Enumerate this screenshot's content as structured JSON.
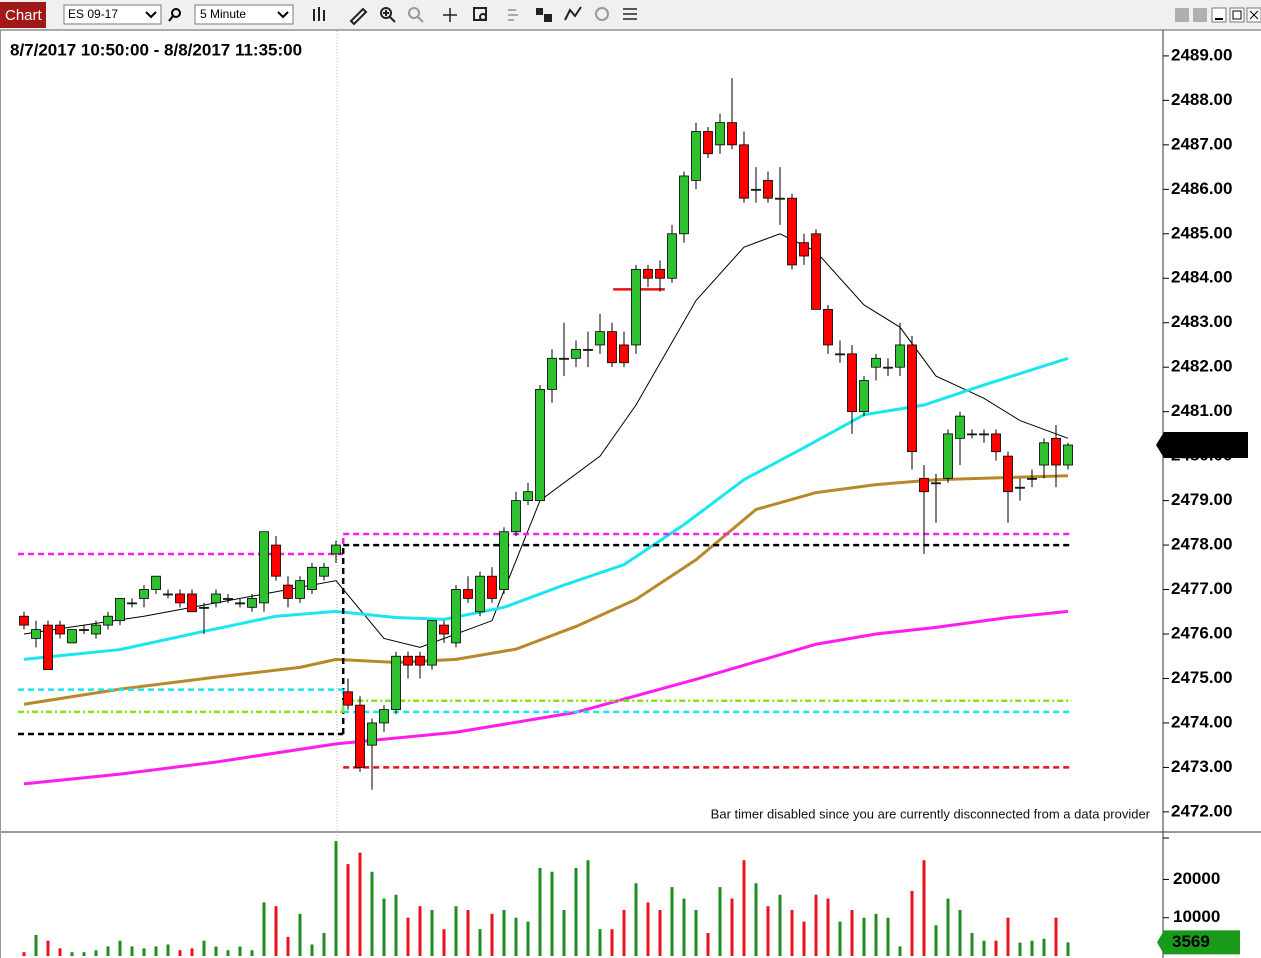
{
  "toolbar": {
    "title": "Chart",
    "instrument": "ES 09-17",
    "interval": "5 Minute"
  },
  "chart_data": [
    {
      "type": "candlestick",
      "title": "8/7/2017 10:50:00 - 8/8/2017 11:35:00",
      "annotation": "Bar timer disabled since you are currently disconnected from a data provider",
      "up_color": "#2fc02f",
      "down_color": "#ff0000",
      "open": [
        2476.4,
        2475.9,
        2476.2,
        2476.2,
        2475.8,
        2476.1,
        2476.0,
        2476.2,
        2476.3,
        2476.7,
        2476.8,
        2477.0,
        2476.9,
        2476.9,
        2476.9,
        2476.6,
        2476.7,
        2476.8,
        2476.7,
        2476.6,
        2476.7,
        2478.0,
        2477.1,
        2476.8,
        2477.0,
        2477.3,
        2477.8,
        2474.7,
        2474.4,
        2473.5,
        2474.0,
        2474.3,
        2475.5,
        2475.5,
        2475.3,
        2476.2,
        2475.8,
        2477.0,
        2476.5,
        2477.3,
        2477.0,
        2478.3,
        2479.0,
        2479.0,
        2481.5,
        2482.2,
        2482.2,
        2482.4,
        2482.5,
        2482.8,
        2482.5,
        2482.5,
        2484.2,
        2484.2,
        2484.0,
        2485.0,
        2486.2,
        2487.3,
        2487.0,
        2487.5,
        2487.0,
        2486.0,
        2486.2,
        2485.8,
        2485.8,
        2484.8,
        2485.0,
        2483.3,
        2482.3,
        2482.3,
        2481.0,
        2482.0,
        2482.0,
        2482.0,
        2482.5,
        2479.5,
        2479.4,
        2479.5,
        2480.4,
        2480.5,
        2480.5,
        2480.5,
        2480.0,
        2479.3,
        2479.5,
        2479.8,
        2480.4,
        2479.8
      ],
      "high": [
        2476.5,
        2476.3,
        2476.3,
        2476.3,
        2476.1,
        2476.2,
        2476.3,
        2476.5,
        2476.8,
        2476.8,
        2477.1,
        2477.3,
        2477.0,
        2477.0,
        2477.0,
        2476.7,
        2477.0,
        2476.9,
        2476.8,
        2476.9,
        2478.3,
        2478.2,
        2477.3,
        2477.3,
        2477.6,
        2477.6,
        2478.1,
        2475.0,
        2474.6,
        2474.1,
        2474.4,
        2475.6,
        2475.6,
        2475.6,
        2476.3,
        2476.3,
        2477.1,
        2477.3,
        2477.4,
        2477.5,
        2478.4,
        2479.2,
        2479.4,
        2481.6,
        2482.4,
        2483.0,
        2482.6,
        2482.8,
        2483.2,
        2483.0,
        2482.8,
        2484.3,
        2484.3,
        2484.4,
        2485.2,
        2486.4,
        2487.5,
        2487.4,
        2487.7,
        2488.5,
        2487.3,
        2486.5,
        2486.4,
        2486.5,
        2485.9,
        2485.0,
        2485.1,
        2483.4,
        2482.6,
        2482.5,
        2481.8,
        2482.3,
        2482.2,
        2483.0,
        2482.7,
        2479.8,
        2479.6,
        2480.6,
        2481.0,
        2480.6,
        2480.6,
        2480.6,
        2480.1,
        2479.5,
        2479.7,
        2480.4,
        2480.7,
        2480.3
      ],
      "low": [
        2476.1,
        2475.7,
        2475.2,
        2475.9,
        2475.8,
        2476.0,
        2475.9,
        2476.1,
        2476.2,
        2476.6,
        2476.6,
        2476.9,
        2476.8,
        2476.6,
        2476.5,
        2476.0,
        2476.6,
        2476.7,
        2476.6,
        2476.5,
        2476.5,
        2477.2,
        2476.6,
        2476.7,
        2476.9,
        2477.2,
        2477.6,
        2474.3,
        2472.9,
        2472.5,
        2473.8,
        2474.2,
        2475.0,
        2475.0,
        2475.2,
        2475.8,
        2475.7,
        2476.7,
        2476.4,
        2476.7,
        2476.9,
        2478.2,
        2478.9,
        2479.0,
        2481.2,
        2481.8,
        2482.0,
        2482.0,
        2482.3,
        2482.0,
        2482.0,
        2482.3,
        2483.8,
        2483.7,
        2483.9,
        2484.8,
        2486.0,
        2486.7,
        2486.8,
        2486.9,
        2485.7,
        2485.7,
        2485.7,
        2485.2,
        2484.2,
        2484.3,
        2483.3,
        2482.3,
        2482.1,
        2480.5,
        2480.9,
        2481.7,
        2481.8,
        2481.8,
        2479.7,
        2477.8,
        2478.5,
        2479.4,
        2479.8,
        2480.4,
        2480.3,
        2479.9,
        2478.5,
        2479.0,
        2479.3,
        2479.5,
        2479.3,
        2479.7
      ],
      "close": [
        2476.2,
        2476.1,
        2475.2,
        2476.0,
        2476.1,
        2476.1,
        2476.2,
        2476.4,
        2476.8,
        2476.7,
        2477.0,
        2477.3,
        2476.9,
        2476.7,
        2476.5,
        2476.6,
        2476.9,
        2476.8,
        2476.7,
        2476.8,
        2478.3,
        2477.3,
        2476.8,
        2477.2,
        2477.5,
        2477.5,
        2478.0,
        2474.4,
        2473.0,
        2474.0,
        2474.3,
        2475.5,
        2475.3,
        2475.3,
        2476.3,
        2476.0,
        2477.0,
        2476.8,
        2477.3,
        2476.8,
        2478.3,
        2479.0,
        2479.2,
        2481.5,
        2482.2,
        2482.2,
        2482.4,
        2482.4,
        2482.8,
        2482.1,
        2482.1,
        2484.2,
        2484.0,
        2484.0,
        2485.0,
        2486.3,
        2487.3,
        2486.8,
        2487.5,
        2487.0,
        2485.8,
        2486.0,
        2485.8,
        2485.8,
        2484.3,
        2484.5,
        2483.3,
        2482.5,
        2482.3,
        2481.0,
        2481.7,
        2482.2,
        2482.0,
        2482.5,
        2480.1,
        2479.2,
        2479.4,
        2480.5,
        2480.9,
        2480.5,
        2480.5,
        2480.1,
        2479.2,
        2479.3,
        2479.5,
        2480.3,
        2479.8,
        2480.25
      ],
      "last_price": 2480.25,
      "ylim": [
        2471.57,
        2489.56
      ],
      "yticks": [
        {
          "value": 2472,
          "label": "2472.00"
        },
        {
          "value": 2473,
          "label": "2473.00"
        },
        {
          "value": 2474,
          "label": "2474.00"
        },
        {
          "value": 2475,
          "label": "2475.00"
        },
        {
          "value": 2476,
          "label": "2476.00"
        },
        {
          "value": 2477,
          "label": "2477.00"
        },
        {
          "value": 2478,
          "label": "2478.00"
        },
        {
          "value": 2479,
          "label": "2479.00"
        },
        {
          "value": 2480,
          "label": "2480.00"
        },
        {
          "value": 2481,
          "label": "2481.00"
        },
        {
          "value": 2482,
          "label": "2482.00"
        },
        {
          "value": 2483,
          "label": "2483.00"
        },
        {
          "value": 2484,
          "label": "2484.00"
        },
        {
          "value": 2485,
          "label": "2485.00"
        },
        {
          "value": 2486,
          "label": "2486.00"
        },
        {
          "value": 2487,
          "label": "2487.00"
        },
        {
          "value": 2488,
          "label": "2488.00"
        },
        {
          "value": 2489,
          "label": "2489.00"
        }
      ],
      "indicators": [
        {
          "color": "#000000",
          "width": 1,
          "x": [
            0,
            10,
            20,
            26,
            30,
            33,
            39,
            43,
            48,
            51,
            56,
            60,
            63,
            66,
            70,
            73,
            76,
            80,
            83,
            87
          ],
          "values": [
            2476.0,
            2476.4,
            2476.9,
            2477.2,
            2475.9,
            2475.7,
            2476.3,
            2479.0,
            2480.0,
            2481.15,
            2483.5,
            2484.7,
            2485.0,
            2484.6,
            2483.4,
            2482.9,
            2481.8,
            2481.3,
            2480.8,
            2480.4
          ]
        },
        {
          "color": "#19e6f0",
          "width": 3,
          "x": [
            0,
            8,
            15,
            21,
            26,
            31,
            35,
            40,
            45,
            50,
            55,
            60,
            65,
            70,
            75,
            80,
            87
          ],
          "values": [
            2475.43,
            2475.65,
            2476.06,
            2476.4,
            2476.51,
            2476.37,
            2476.33,
            2476.6,
            2477.1,
            2477.56,
            2478.46,
            2479.47,
            2480.19,
            2480.93,
            2481.15,
            2481.6,
            2482.2
          ]
        },
        {
          "color": "#b8892a",
          "width": 3,
          "x": [
            0,
            8,
            16,
            23,
            26,
            31,
            36,
            41,
            46,
            51,
            56,
            61,
            66,
            71,
            76,
            81,
            87
          ],
          "values": [
            2474.42,
            2474.76,
            2475.03,
            2475.25,
            2475.43,
            2475.36,
            2475.43,
            2475.66,
            2476.17,
            2476.78,
            2477.67,
            2478.8,
            2479.18,
            2479.36,
            2479.47,
            2479.51,
            2479.56
          ]
        },
        {
          "color": "#ff1cf0",
          "width": 3,
          "x": [
            0,
            8,
            16,
            26,
            36,
            46,
            56,
            66,
            71,
            76,
            82,
            87
          ],
          "values": [
            2472.63,
            2472.85,
            2473.12,
            2473.53,
            2473.79,
            2474.24,
            2474.98,
            2475.77,
            2476.0,
            2476.15,
            2476.37,
            2476.51
          ]
        }
      ],
      "levels": [
        {
          "color": "#ff1cf0",
          "dash": "dashed",
          "segments": [
            {
              "x": [
                -0.5,
                26.6
              ],
              "values": [
                2477.8,
                2477.8
              ]
            },
            {
              "x": [
                26.6,
                87.3
              ],
              "values": [
                2478.25,
                2478.25
              ]
            }
          ]
        },
        {
          "color": "#000000",
          "dash": "dashed",
          "segments": [
            {
              "x": [
                -0.5,
                26.6
              ],
              "values": [
                2473.75,
                2473.75
              ]
            },
            {
              "x": [
                26.6,
                87.3
              ],
              "values": [
                2478.0,
                2478.0
              ]
            }
          ]
        },
        {
          "color": "#19e6f0",
          "dash": "dashed",
          "segments": [
            {
              "x": [
                -0.5,
                26.6
              ],
              "values": [
                2474.75,
                2474.75
              ]
            },
            {
              "x": [
                26.6,
                87.3
              ],
              "values": [
                2474.25,
                2474.25
              ]
            }
          ]
        },
        {
          "color": "#88e01a",
          "dash": "dashdot",
          "segments": [
            {
              "x": [
                -0.5,
                26.6
              ],
              "values": [
                2474.25,
                2474.25
              ]
            },
            {
              "x": [
                26.6,
                87.3
              ],
              "values": [
                2474.5,
                2474.5
              ]
            }
          ]
        },
        {
          "color": "#e81010",
          "dash": "dashed",
          "segments": [
            {
              "x": [
                26.6,
                87.3
              ],
              "values": [
                2473.0,
                2473.0
              ]
            }
          ]
        },
        {
          "color": "#e81010",
          "dash": "solid",
          "segments": [
            {
              "x": [
                49.1,
                53.4
              ],
              "values": [
                2483.75,
                2483.75
              ]
            }
          ]
        }
      ]
    },
    {
      "type": "bar",
      "up_color": "#1e8c1e",
      "down_color": "#e8101a",
      "values": [
        1000,
        5500,
        4000,
        2000,
        1000,
        1000,
        1500,
        2500,
        4000,
        2500,
        2000,
        2500,
        3000,
        1500,
        2000,
        4000,
        2500,
        1500,
        2500,
        1500,
        14000,
        13000,
        5000,
        11000,
        3000,
        6000,
        30000,
        24000,
        27000,
        22000,
        15000,
        16000,
        10000,
        13000,
        12000,
        7000,
        13000,
        12000,
        7000,
        11000,
        12000,
        10000,
        9000,
        23000,
        22000,
        12000,
        23000,
        25000,
        7000,
        7000,
        12000,
        19000,
        14000,
        12000,
        18000,
        15000,
        12000,
        6000,
        18000,
        15000,
        25000,
        19000,
        13000,
        16000,
        12000,
        9000,
        16000,
        15000,
        9000,
        12000,
        10000,
        11000,
        10000,
        2500,
        17000,
        25000,
        8000,
        15000,
        12000,
        6000,
        4000,
        4000,
        10000,
        3500,
        4000,
        4500,
        10000,
        3569
      ],
      "last_value": 3569,
      "last_color": "#1a9a1a",
      "ylim": [
        0,
        31600
      ],
      "yticks": [
        10000,
        20000
      ]
    }
  ]
}
